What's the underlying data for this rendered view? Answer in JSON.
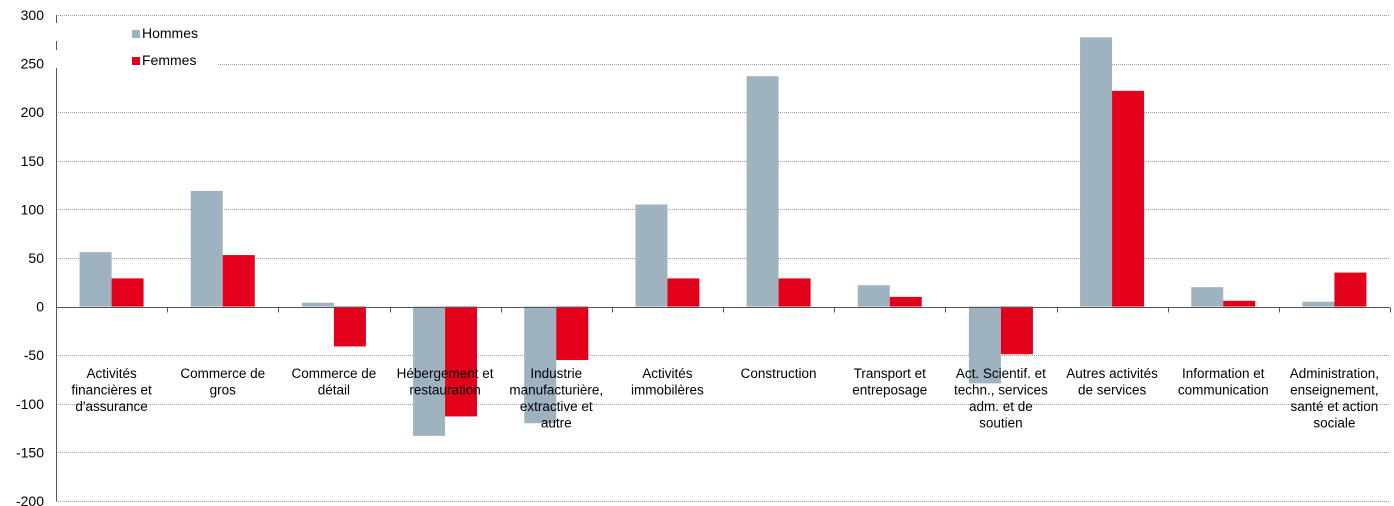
{
  "chart_data": {
    "type": "bar",
    "categories": [
      "Activités financières et d'assurance",
      "Commerce de gros",
      "Commerce de détail",
      "Hébergement et restauration",
      "Industrie manufacturière, extractive et autre",
      "Activités immobilères",
      "Construction",
      "Transport et entreposage",
      "Act. Scientif. et techn., services adm. et de soutien",
      "Autres activités de services",
      "Information et communication",
      "Administration, enseignement, santé et action sociale"
    ],
    "category_lines": [
      [
        "Activités",
        "financières et",
        "d'assurance"
      ],
      [
        "Commerce de",
        "gros"
      ],
      [
        "Commerce de",
        "détail"
      ],
      [
        "Hébergement et",
        "restauration"
      ],
      [
        "Industrie",
        "manufacturière,",
        "extractive et",
        "autre"
      ],
      [
        "Activités",
        "immobilères"
      ],
      [
        "Construction"
      ],
      [
        "Transport et",
        "entreposage"
      ],
      [
        "Act. Scientif. et",
        "techn., services",
        "adm. et de",
        "soutien"
      ],
      [
        "Autres activités",
        "de services"
      ],
      [
        "Information et",
        "communication"
      ],
      [
        "Administration,",
        "enseignement,",
        "santé et action",
        "sociale"
      ]
    ],
    "series": [
      {
        "name": "Hommes",
        "color": "#9fb2c0",
        "values": [
          56,
          119,
          4,
          -133,
          -120,
          105,
          237,
          22,
          -79,
          277,
          20,
          5
        ]
      },
      {
        "name": "Femmes",
        "color": "#e3001b",
        "values": [
          29,
          53,
          -41,
          -113,
          -55,
          29,
          29,
          10,
          -49,
          222,
          6,
          35
        ]
      }
    ],
    "ylim": [
      -200,
      300
    ],
    "yticks": [
      300,
      250,
      200,
      150,
      100,
      50,
      0,
      -50,
      -100,
      -150,
      -200
    ],
    "grid": true,
    "grid_color": "#9a9a9a",
    "legend_position": "top-left",
    "title": "",
    "xlabel": "",
    "ylabel": ""
  }
}
